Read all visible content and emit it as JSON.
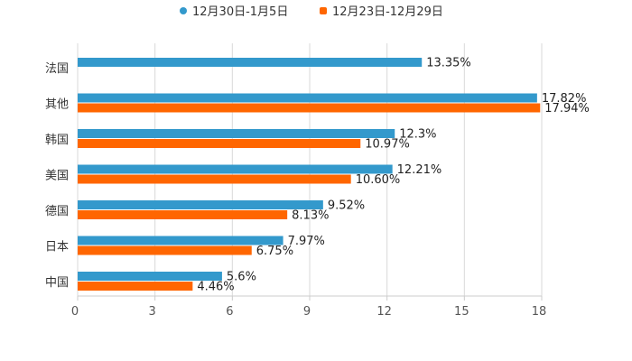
{
  "chart_data": {
    "type": "bar",
    "orientation": "horizontal",
    "categories": [
      "法国",
      "其他",
      "韩国",
      "美国",
      "德国",
      "日本",
      "中国"
    ],
    "series": [
      {
        "name": "12月30日-1月5日",
        "color": "#3399cc",
        "values": [
          13.35,
          17.82,
          12.3,
          12.21,
          9.52,
          7.97,
          5.6
        ],
        "labels": [
          "13.35%",
          "17.82%",
          "12.3%",
          "12.21%",
          "9.52%",
          "7.97%",
          "5.6%"
        ]
      },
      {
        "name": "12月23日-12月29日",
        "color": "#ff6600",
        "values": [
          null,
          17.94,
          10.97,
          10.6,
          8.13,
          6.75,
          4.46
        ],
        "labels": [
          null,
          "17.94%",
          "10.97%",
          "10.60%",
          "8.13%",
          "6.75%",
          "4.46%"
        ]
      }
    ],
    "x_ticks": [
      "0",
      "3",
      "6",
      "9",
      "12",
      "15",
      "18"
    ],
    "xlim": [
      0,
      18
    ],
    "grid": "vertical",
    "legend_position": "top-center",
    "title": "",
    "xlabel": "",
    "ylabel": ""
  }
}
